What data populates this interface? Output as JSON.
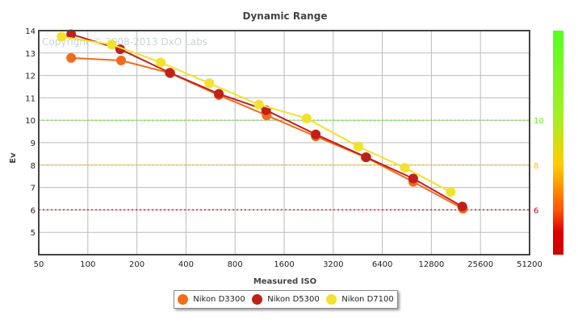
{
  "chart_data": {
    "type": "line",
    "title": "Dynamic Range",
    "xlabel": "Measured ISO",
    "ylabel": "Ev",
    "xscale": "log2",
    "xlim": [
      50,
      51200
    ],
    "ylim": [
      4,
      14
    ],
    "xticks": [
      "50",
      "100",
      "200",
      "400",
      "800",
      "1600",
      "3200",
      "6400",
      "12800",
      "25600",
      "51200"
    ],
    "yticks": [
      "5",
      "6",
      "7",
      "8",
      "9",
      "10",
      "11",
      "12",
      "13",
      "14"
    ],
    "watermark": "Copyright © 2008-2013 DxO Labs",
    "reference_lines": [
      {
        "value": 10,
        "label": "10",
        "color": "#66ee22"
      },
      {
        "value": 8,
        "label": "8",
        "color": "#ffbb00"
      },
      {
        "value": 6,
        "label": "6",
        "color": "#dd0000"
      }
    ],
    "legend_position": "bottom",
    "series": [
      {
        "name": "Nikon D3300",
        "color": "#f26b1d",
        "x": [
          79,
          160,
          321,
          636,
          1250,
          2500,
          5050,
          9900,
          20000
        ],
        "y": [
          12.78,
          12.67,
          12.1,
          11.12,
          10.22,
          9.28,
          8.35,
          7.25,
          6.05
        ]
      },
      {
        "name": "Nikon D5300",
        "color": "#c0201a",
        "x": [
          79,
          158,
          318,
          636,
          1240,
          2500,
          5100,
          9900,
          19800
        ],
        "y": [
          13.84,
          13.17,
          12.12,
          11.18,
          10.45,
          9.37,
          8.35,
          7.4,
          6.15
        ]
      },
      {
        "name": "Nikon D7100",
        "color": "#f2e12e",
        "x": [
          69,
          140,
          280,
          556,
          1120,
          2200,
          4560,
          8800,
          16800
        ],
        "y": [
          13.73,
          13.38,
          12.58,
          11.65,
          10.7,
          10.08,
          8.83,
          7.88,
          6.8
        ]
      }
    ]
  }
}
